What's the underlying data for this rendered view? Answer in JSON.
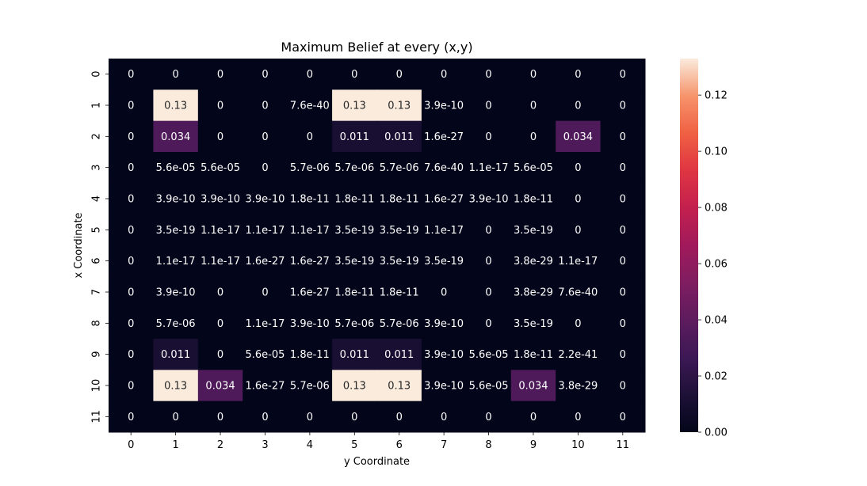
{
  "chart_data": {
    "type": "heatmap",
    "title": "Maximum Belief at every (x,y)",
    "xlabel": "y Coordinate",
    "ylabel": "x Coordinate",
    "x_categories": [
      "0",
      "1",
      "2",
      "3",
      "4",
      "5",
      "6",
      "7",
      "8",
      "9",
      "10",
      "11"
    ],
    "y_categories": [
      "0",
      "1",
      "2",
      "3",
      "4",
      "5",
      "6",
      "7",
      "8",
      "9",
      "10",
      "11"
    ],
    "colorbar": {
      "range": [
        0,
        0.133
      ],
      "ticks": [
        {
          "value": 0.0,
          "label": "0.00"
        },
        {
          "value": 0.02,
          "label": "0.02"
        },
        {
          "value": 0.04,
          "label": "0.04"
        },
        {
          "value": 0.06,
          "label": "0.06"
        },
        {
          "value": 0.08,
          "label": "0.08"
        },
        {
          "value": 0.1,
          "label": "0.10"
        },
        {
          "value": 0.12,
          "label": "0.12"
        }
      ]
    },
    "labels": [
      [
        "0",
        "0",
        "0",
        "0",
        "0",
        "0",
        "0",
        "0",
        "0",
        "0",
        "0",
        "0"
      ],
      [
        "0",
        "0.13",
        "0",
        "0",
        "7.6e-40",
        "0.13",
        "0.13",
        "3.9e-10",
        "0",
        "0",
        "0",
        "0"
      ],
      [
        "0",
        "0.034",
        "0",
        "0",
        "0",
        "0.011",
        "0.011",
        "1.6e-27",
        "0",
        "0",
        "0.034",
        "0"
      ],
      [
        "0",
        "5.6e-05",
        "5.6e-05",
        "0",
        "5.7e-06",
        "5.7e-06",
        "5.7e-06",
        "7.6e-40",
        "1.1e-17",
        "5.6e-05",
        "0",
        "0"
      ],
      [
        "0",
        "3.9e-10",
        "3.9e-10",
        "3.9e-10",
        "1.8e-11",
        "1.8e-11",
        "1.8e-11",
        "1.6e-27",
        "3.9e-10",
        "1.8e-11",
        "0",
        "0"
      ],
      [
        "0",
        "3.5e-19",
        "1.1e-17",
        "1.1e-17",
        "1.1e-17",
        "3.5e-19",
        "3.5e-19",
        "1.1e-17",
        "0",
        "3.5e-19",
        "0",
        "0"
      ],
      [
        "0",
        "1.1e-17",
        "1.1e-17",
        "1.6e-27",
        "1.6e-27",
        "3.5e-19",
        "3.5e-19",
        "3.5e-19",
        "0",
        "3.8e-29",
        "1.1e-17",
        "0"
      ],
      [
        "0",
        "3.9e-10",
        "0",
        "0",
        "1.6e-27",
        "1.8e-11",
        "1.8e-11",
        "0",
        "0",
        "3.8e-29",
        "7.6e-40",
        "0"
      ],
      [
        "0",
        "5.7e-06",
        "0",
        "1.1e-17",
        "3.9e-10",
        "5.7e-06",
        "5.7e-06",
        "3.9e-10",
        "0",
        "3.5e-19",
        "0",
        "0"
      ],
      [
        "0",
        "0.011",
        "0",
        "5.6e-05",
        "1.8e-11",
        "0.011",
        "0.011",
        "3.9e-10",
        "5.6e-05",
        "1.8e-11",
        "2.2e-41",
        "0"
      ],
      [
        "0",
        "0.13",
        "0.034",
        "1.6e-27",
        "5.7e-06",
        "0.13",
        "0.13",
        "3.9e-10",
        "5.6e-05",
        "0.034",
        "3.8e-29",
        "0"
      ],
      [
        "0",
        "0",
        "0",
        "0",
        "0",
        "0",
        "0",
        "0",
        "0",
        "0",
        "0",
        "0"
      ]
    ],
    "values": [
      [
        0,
        0,
        0,
        0,
        0,
        0,
        0,
        0,
        0,
        0,
        0,
        0
      ],
      [
        0,
        0.133,
        0,
        0,
        7.6e-40,
        0.133,
        0.133,
        3.9e-10,
        0,
        0,
        0,
        0
      ],
      [
        0,
        0.034,
        0,
        0,
        0,
        0.011,
        0.011,
        1.6e-27,
        0,
        0,
        0.034,
        0
      ],
      [
        0,
        5.6e-05,
        5.6e-05,
        0,
        5.7e-06,
        5.7e-06,
        5.7e-06,
        7.6e-40,
        1.1e-17,
        5.6e-05,
        0,
        0
      ],
      [
        0,
        3.9e-10,
        3.9e-10,
        3.9e-10,
        1.8e-11,
        1.8e-11,
        1.8e-11,
        1.6e-27,
        3.9e-10,
        1.8e-11,
        0,
        0
      ],
      [
        0,
        3.5e-19,
        1.1e-17,
        1.1e-17,
        1.1e-17,
        3.5e-19,
        3.5e-19,
        1.1e-17,
        0,
        3.5e-19,
        0,
        0
      ],
      [
        0,
        1.1e-17,
        1.1e-17,
        1.6e-27,
        1.6e-27,
        3.5e-19,
        3.5e-19,
        3.5e-19,
        0,
        3.8e-29,
        1.1e-17,
        0
      ],
      [
        0,
        3.9e-10,
        0,
        0,
        1.6e-27,
        1.8e-11,
        1.8e-11,
        0,
        0,
        3.8e-29,
        7.6e-40,
        0
      ],
      [
        0,
        5.7e-06,
        0,
        1.1e-17,
        3.9e-10,
        5.7e-06,
        5.7e-06,
        3.9e-10,
        0,
        3.5e-19,
        0,
        0
      ],
      [
        0,
        0.011,
        0,
        5.6e-05,
        1.8e-11,
        0.011,
        0.011,
        3.9e-10,
        5.6e-05,
        1.8e-11,
        2.2e-41,
        0
      ],
      [
        0,
        0.133,
        0.034,
        1.6e-27,
        5.7e-06,
        0.133,
        0.133,
        3.9e-10,
        5.6e-05,
        0.034,
        3.8e-29,
        0
      ],
      [
        0,
        0,
        0,
        0,
        0,
        0,
        0,
        0,
        0,
        0,
        0,
        0
      ]
    ]
  }
}
